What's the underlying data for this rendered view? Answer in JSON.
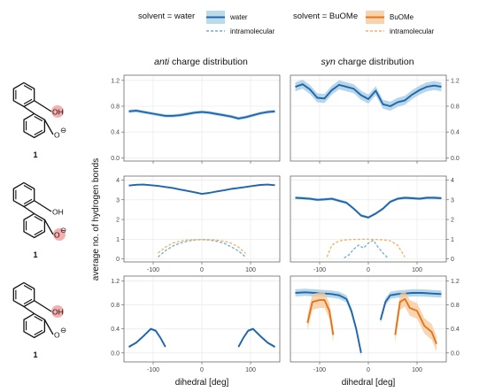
{
  "legend": {
    "water_group_title": "solvent = water",
    "water_entries": [
      "water",
      "intramolecular"
    ],
    "buome_group_title": "solvent = BuOMe",
    "buome_entries": [
      "BuOMe",
      "intramolecular"
    ]
  },
  "column_titles": {
    "anti_italic": "anti",
    "anti_rest": " charge distribution",
    "syn_italic": "syn",
    "syn_rest": " charge distribution"
  },
  "molecules": [
    {
      "oh_label": "OH",
      "o_label": "O",
      "charge": "⊖",
      "number": "1"
    },
    {
      "oh_label": "OH",
      "o_label": "O",
      "charge": "⊖",
      "number": "1"
    },
    {
      "oh_label": "OH",
      "o_label": "O",
      "charge": "⊖",
      "number": "1"
    }
  ],
  "colors": {
    "water": "#2166ac",
    "water_band": "#9ecae1",
    "water_intra": "#6baed6",
    "buome": "#e6751a",
    "buome_band": "#f5c89a",
    "buome_intra": "#f4b060",
    "highlight": "#f4a0a0",
    "grid": "#ececec",
    "frame": "#555555"
  },
  "chart_data": [
    {
      "type": "line",
      "panel": "anti-row1",
      "xlabel": "",
      "ylabel": "",
      "xlim": [
        -160,
        160
      ],
      "ylim": [
        -0.05,
        1.28
      ],
      "xticks": [
        -100,
        0,
        100
      ],
      "xtick_labels": [
        "",
        "",
        ""
      ],
      "yticks": [
        0.0,
        0.4,
        0.8,
        1.2
      ],
      "ytick_labels": [
        "0.0",
        "0.4",
        "0.8",
        "1.2"
      ],
      "ytick_side": "left",
      "series": [
        {
          "name": "water",
          "x": [
            -150,
            -135,
            -120,
            -105,
            -90,
            -75,
            -60,
            -45,
            -30,
            -15,
            0,
            15,
            30,
            45,
            60,
            75,
            90,
            105,
            120,
            135,
            150
          ],
          "y": [
            0.72,
            0.73,
            0.71,
            0.69,
            0.67,
            0.65,
            0.65,
            0.66,
            0.68,
            0.7,
            0.71,
            0.7,
            0.68,
            0.66,
            0.64,
            0.61,
            0.63,
            0.66,
            0.69,
            0.71,
            0.72
          ],
          "band": 0.025
        }
      ]
    },
    {
      "type": "line",
      "panel": "syn-row1",
      "xlabel": "",
      "ylabel": "",
      "xlim": [
        -160,
        160
      ],
      "ylim": [
        -0.05,
        1.28
      ],
      "xticks": [
        -100,
        0,
        100
      ],
      "xtick_labels": [
        "",
        "",
        ""
      ],
      "yticks": [
        0.0,
        0.4,
        0.8,
        1.2
      ],
      "ytick_labels": [
        "0.0",
        "0.4",
        "0.8",
        "1.2"
      ],
      "ytick_side": "right",
      "series": [
        {
          "name": "water",
          "x": [
            -150,
            -135,
            -120,
            -105,
            -90,
            -75,
            -60,
            -45,
            -30,
            -15,
            0,
            15,
            30,
            45,
            60,
            75,
            90,
            105,
            120,
            135,
            150
          ],
          "y": [
            1.1,
            1.14,
            1.06,
            0.93,
            0.92,
            1.05,
            1.13,
            1.1,
            1.07,
            0.97,
            0.91,
            1.04,
            0.83,
            0.8,
            0.86,
            0.89,
            0.98,
            1.05,
            1.1,
            1.12,
            1.1
          ],
          "band": 0.07
        }
      ]
    },
    {
      "type": "line",
      "panel": "anti-row2",
      "xlabel": "",
      "ylabel": "",
      "xlim": [
        -160,
        160
      ],
      "ylim": [
        -0.15,
        4.2
      ],
      "xticks": [
        -100,
        0,
        100
      ],
      "xtick_labels": [
        "-100",
        "0",
        "100"
      ],
      "yticks": [
        0,
        1,
        2,
        3,
        4
      ],
      "ytick_labels": [
        "0",
        "1",
        "2",
        "3",
        "4"
      ],
      "ytick_side": "left",
      "series": [
        {
          "name": "water",
          "x": [
            -150,
            -135,
            -120,
            -105,
            -90,
            -75,
            -60,
            -45,
            -30,
            -15,
            0,
            15,
            30,
            45,
            60,
            75,
            90,
            105,
            120,
            135,
            150
          ],
          "y": [
            3.72,
            3.76,
            3.77,
            3.74,
            3.7,
            3.65,
            3.6,
            3.52,
            3.45,
            3.38,
            3.3,
            3.35,
            3.42,
            3.48,
            3.55,
            3.6,
            3.65,
            3.7,
            3.75,
            3.77,
            3.74
          ],
          "band": 0.04
        },
        {
          "name": "intramolecular",
          "dashed": true,
          "solvent": "water",
          "x": [
            -90,
            -75,
            -60,
            -45,
            -30,
            -15,
            0,
            15,
            30,
            45,
            60,
            75,
            90
          ],
          "y": [
            0.1,
            0.42,
            0.65,
            0.8,
            0.9,
            0.96,
            0.98,
            0.96,
            0.9,
            0.8,
            0.62,
            0.4,
            0.1
          ]
        },
        {
          "name": "intramolecular",
          "dashed": true,
          "solvent": "BuOMe",
          "x": [
            -90,
            -75,
            -60,
            -45,
            -30,
            -15,
            0,
            15,
            30,
            45,
            60,
            75,
            90
          ],
          "y": [
            0.3,
            0.6,
            0.8,
            0.9,
            0.96,
            0.98,
            0.99,
            0.98,
            0.96,
            0.9,
            0.8,
            0.6,
            0.28
          ]
        }
      ]
    },
    {
      "type": "line",
      "panel": "syn-row2",
      "xlabel": "",
      "ylabel": "",
      "xlim": [
        -160,
        160
      ],
      "ylim": [
        -0.15,
        4.2
      ],
      "xticks": [
        -100,
        0,
        100
      ],
      "xtick_labels": [
        "-100",
        "0",
        "100"
      ],
      "yticks": [
        0,
        1,
        2,
        3,
        4
      ],
      "ytick_labels": [
        "0",
        "1",
        "2",
        "3",
        "4"
      ],
      "ytick_side": "right",
      "series": [
        {
          "name": "water",
          "x": [
            -150,
            -135,
            -120,
            -105,
            -90,
            -75,
            -60,
            -45,
            -30,
            -15,
            0,
            15,
            30,
            45,
            60,
            75,
            90,
            105,
            120,
            135,
            150
          ],
          "y": [
            3.1,
            3.08,
            3.05,
            3.0,
            3.02,
            3.05,
            2.95,
            2.85,
            2.55,
            2.2,
            2.1,
            2.3,
            2.55,
            2.9,
            3.05,
            3.1,
            3.08,
            3.05,
            3.1,
            3.1,
            3.08
          ],
          "band": 0.07
        },
        {
          "name": "intramolecular",
          "dashed": true,
          "solvent": "water",
          "x": [
            -50,
            -40,
            -30,
            -20,
            -10,
            0,
            10,
            20,
            30,
            40
          ],
          "y": [
            0.05,
            0.2,
            0.5,
            0.7,
            0.55,
            0.8,
            0.95,
            0.6,
            0.3,
            0.05
          ]
        },
        {
          "name": "intramolecular",
          "dashed": true,
          "solvent": "BuOMe",
          "x": [
            -85,
            -75,
            -60,
            -45,
            -30,
            -15,
            0,
            15,
            30,
            45,
            60,
            75
          ],
          "y": [
            0.1,
            0.7,
            0.92,
            0.97,
            0.99,
            1.0,
            1.0,
            0.99,
            0.97,
            0.92,
            0.7,
            0.1
          ]
        }
      ]
    },
    {
      "type": "line",
      "panel": "anti-row3",
      "xlabel": "dihedral [deg]",
      "ylabel": "",
      "xlim": [
        -160,
        160
      ],
      "ylim": [
        -0.15,
        1.28
      ],
      "xticks": [
        -100,
        0,
        100
      ],
      "xtick_labels": [
        "-100",
        "0",
        "100"
      ],
      "yticks": [
        0.0,
        0.4,
        0.8,
        1.2
      ],
      "ytick_labels": [
        "0.0",
        "0.4",
        "0.8",
        "1.2"
      ],
      "ytick_side": "left",
      "series": [
        {
          "name": "water",
          "x": [
            -150,
            -135,
            -120,
            -105,
            -95,
            -85,
            -75
          ],
          "y": [
            0.1,
            0.17,
            0.28,
            0.4,
            0.37,
            0.25,
            0.1
          ],
          "band": 0.02
        },
        {
          "name": "water",
          "x": [
            75,
            85,
            95,
            105,
            120,
            135,
            150
          ],
          "y": [
            0.1,
            0.25,
            0.37,
            0.4,
            0.28,
            0.17,
            0.1
          ],
          "band": 0.02
        }
      ]
    },
    {
      "type": "line",
      "panel": "syn-row3",
      "xlabel": "dihedral [deg]",
      "ylabel": "",
      "xlim": [
        -160,
        160
      ],
      "ylim": [
        -0.15,
        1.28
      ],
      "xticks": [
        -100,
        0,
        100
      ],
      "xtick_labels": [
        "-100",
        "0",
        "100"
      ],
      "yticks": [
        0.0,
        0.4,
        0.8,
        1.2
      ],
      "ytick_labels": [
        "0.0",
        "0.4",
        "0.8",
        "1.2"
      ],
      "ytick_side": "right",
      "series": [
        {
          "name": "water",
          "x": [
            -150,
            -130,
            -110,
            -90,
            -75,
            -60,
            -45,
            -35,
            -25,
            -15
          ],
          "y": [
            1.0,
            1.01,
            1.0,
            0.99,
            0.98,
            0.96,
            0.9,
            0.7,
            0.4,
            0.0
          ],
          "band": 0.06
        },
        {
          "name": "water",
          "x": [
            25,
            35,
            45,
            60,
            75,
            90,
            110,
            130,
            150
          ],
          "y": [
            0.55,
            0.85,
            0.96,
            0.98,
            0.99,
            1.0,
            1.0,
            0.99,
            0.98
          ],
          "band": 0.06
        },
        {
          "name": "BuOMe",
          "x": [
            -125,
            -115,
            -100,
            -90,
            -80,
            -72
          ],
          "y": [
            0.5,
            0.85,
            0.88,
            0.88,
            0.7,
            0.3
          ],
          "band": 0.13
        },
        {
          "name": "BuOMe",
          "x": [
            55,
            65,
            75,
            85,
            100,
            115,
            130,
            140
          ],
          "y": [
            0.3,
            0.85,
            0.9,
            0.75,
            0.7,
            0.45,
            0.35,
            0.15
          ],
          "band": 0.13
        }
      ]
    }
  ],
  "shared_ylabel": "average no. of hydrogen bonds",
  "shared_xlabel": "dihedral [deg]"
}
